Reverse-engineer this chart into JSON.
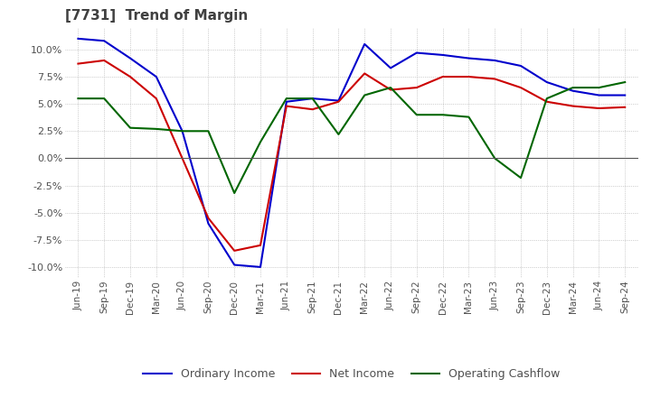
{
  "title": "[7731]  Trend of Margin",
  "title_color": "#404040",
  "background_color": "#ffffff",
  "grid_color": "#aaaaaa",
  "ylim": [
    -11,
    12
  ],
  "yticks": [
    -10.0,
    -7.5,
    -5.0,
    -2.5,
    0.0,
    2.5,
    5.0,
    7.5,
    10.0
  ],
  "x_labels": [
    "Jun-19",
    "Sep-19",
    "Dec-19",
    "Mar-20",
    "Jun-20",
    "Sep-20",
    "Dec-20",
    "Mar-21",
    "Jun-21",
    "Sep-21",
    "Dec-21",
    "Mar-22",
    "Jun-22",
    "Sep-22",
    "Dec-22",
    "Mar-23",
    "Jun-23",
    "Sep-23",
    "Dec-23",
    "Mar-24",
    "Jun-24",
    "Sep-24"
  ],
  "ordinary_income": [
    11.0,
    10.8,
    9.2,
    7.5,
    2.5,
    -6.0,
    -9.8,
    -10.0,
    5.2,
    5.5,
    5.3,
    10.5,
    8.3,
    9.7,
    9.5,
    9.2,
    9.0,
    8.5,
    7.0,
    6.2,
    5.8,
    5.8
  ],
  "net_income": [
    8.7,
    9.0,
    7.5,
    5.5,
    0.0,
    -5.5,
    -8.5,
    -8.0,
    4.8,
    4.5,
    5.2,
    7.8,
    6.3,
    6.5,
    7.5,
    7.5,
    7.3,
    6.5,
    5.2,
    4.8,
    4.6,
    4.7
  ],
  "operating_cashflow": [
    5.5,
    5.5,
    2.8,
    2.7,
    2.5,
    2.5,
    -3.2,
    1.5,
    5.5,
    5.5,
    2.2,
    5.8,
    6.5,
    4.0,
    4.0,
    3.8,
    0.0,
    -1.8,
    5.5,
    6.5,
    6.5,
    7.0
  ],
  "line_colors": {
    "ordinary_income": "#0000cc",
    "net_income": "#cc0000",
    "operating_cashflow": "#006600"
  },
  "legend_labels": {
    "ordinary_income": "Ordinary Income",
    "net_income": "Net Income",
    "operating_cashflow": "Operating Cashflow"
  }
}
